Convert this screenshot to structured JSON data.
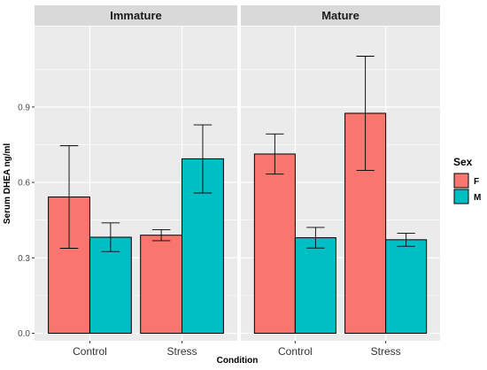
{
  "chart_data": {
    "type": "bar",
    "facets": [
      "Immature",
      "Mature"
    ],
    "categories": [
      "Control",
      "Stress"
    ],
    "xlabel": "Condition",
    "ylabel": "Serum DHEA ng/ml",
    "ylim": [
      -0.03,
      1.22
    ],
    "yticks": [
      0.0,
      0.3,
      0.6,
      0.9
    ],
    "ytick_labels": [
      "0.0",
      "0.3",
      "0.6",
      "0.9"
    ],
    "grid": true,
    "legend": {
      "title": "Sex",
      "position": "right",
      "entries": [
        {
          "label": "F",
          "color": "#F8766D"
        },
        {
          "label": "M",
          "color": "#00BFC4"
        }
      ]
    },
    "series": [
      {
        "name": "F",
        "color": "#F8766D",
        "values": {
          "Immature": [
            0.542,
            0.39
          ],
          "Mature": [
            0.713,
            0.875
          ]
        },
        "errors": {
          "Immature": [
            [
              0.338,
              0.746
            ],
            [
              0.368,
              0.412
            ]
          ],
          "Mature": [
            [
              0.633,
              0.793
            ],
            [
              0.648,
              1.102
            ]
          ]
        }
      },
      {
        "name": "M",
        "color": "#00BFC4",
        "values": {
          "Immature": [
            0.382,
            0.694
          ],
          "Mature": [
            0.38,
            0.372
          ]
        },
        "errors": {
          "Immature": [
            [
              0.325,
              0.439
            ],
            [
              0.558,
              0.829
            ]
          ],
          "Mature": [
            [
              0.339,
              0.421
            ],
            [
              0.346,
              0.398
            ]
          ]
        }
      }
    ]
  }
}
